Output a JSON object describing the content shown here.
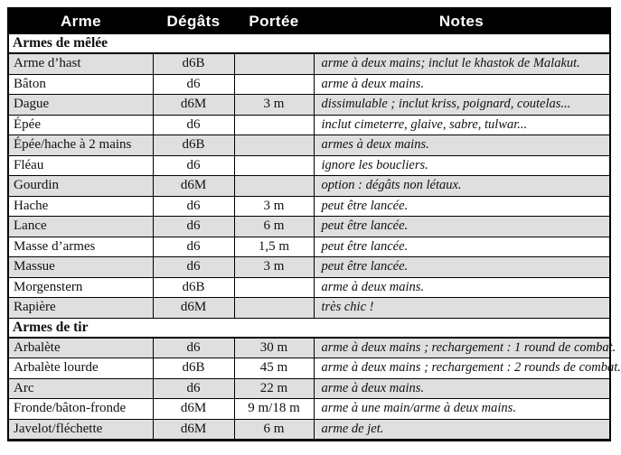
{
  "table": {
    "columns": [
      "Arme",
      "Dégâts",
      "Portée",
      "Notes"
    ],
    "sections": [
      {
        "label": "Armes de mêlée",
        "rows": [
          {
            "name": "Arme d’hast",
            "damage": "d6B",
            "range": "",
            "notes": "arme à deux mains; inclut le khastok de Malakut."
          },
          {
            "name": "Bâton",
            "damage": "d6",
            "range": "",
            "notes": "arme à deux mains."
          },
          {
            "name": "Dague",
            "damage": "d6M",
            "range": "3 m",
            "notes": "dissimulable ; inclut kriss, poignard, coutelas..."
          },
          {
            "name": "Épée",
            "damage": "d6",
            "range": "",
            "notes": "inclut cimeterre, glaive, sabre, tulwar..."
          },
          {
            "name": "Épée/hache à 2 mains",
            "damage": "d6B",
            "range": "",
            "notes": "armes à deux mains."
          },
          {
            "name": "Fléau",
            "damage": "d6",
            "range": "",
            "notes": "ignore les boucliers."
          },
          {
            "name": "Gourdin",
            "damage": "d6M",
            "range": "",
            "notes": "option : dégâts non létaux."
          },
          {
            "name": "Hache",
            "damage": "d6",
            "range": "3 m",
            "notes": "peut être lancée."
          },
          {
            "name": "Lance",
            "damage": "d6",
            "range": "6 m",
            "notes": "peut être lancée."
          },
          {
            "name": "Masse d’armes",
            "damage": "d6",
            "range": "1,5 m",
            "notes": "peut être lancée."
          },
          {
            "name": "Massue",
            "damage": "d6",
            "range": "3 m",
            "notes": "peut être lancée."
          },
          {
            "name": "Morgenstern",
            "damage": "d6B",
            "range": "",
            "notes": "arme à deux mains."
          },
          {
            "name": "Rapière",
            "damage": "d6M",
            "range": "",
            "notes": "très chic !"
          }
        ]
      },
      {
        "label": "Armes de tir",
        "rows": [
          {
            "name": "Arbalète",
            "damage": "d6",
            "range": "30 m",
            "notes": "arme à deux mains ; rechargement : 1 round de combat."
          },
          {
            "name": "Arbalète lourde",
            "damage": "d6B",
            "range": "45 m",
            "notes": "arme à deux mains ; rechargement : 2 rounds de combat."
          },
          {
            "name": "Arc",
            "damage": "d6",
            "range": "22 m",
            "notes": "arme à deux mains."
          },
          {
            "name": "Fronde/bâton-fronde",
            "damage": "d6M",
            "range": "9 m/18 m",
            "notes": "arme à une main/arme à deux mains."
          },
          {
            "name": "Javelot/fléchette",
            "damage": "d6M",
            "range": "6 m",
            "notes": "arme de jet."
          }
        ]
      }
    ],
    "colors": {
      "header_bg": "#000000",
      "header_text": "#ffffff",
      "row_alt_bg": "#dfdfdf",
      "row_bg": "#ffffff",
      "border": "#000000"
    }
  }
}
